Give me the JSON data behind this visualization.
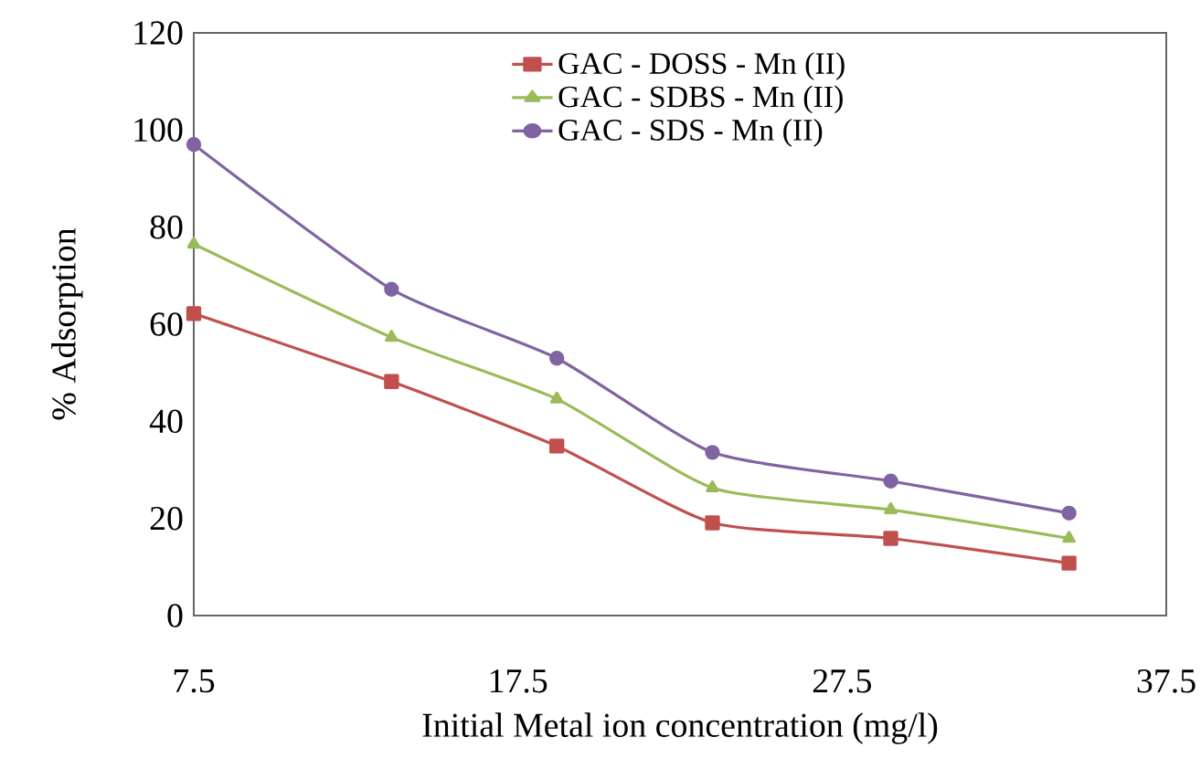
{
  "chart_data": {
    "type": "line",
    "xlabel": "Initial Metal ion concentration (mg/l)",
    "ylabel": "% Adsorption",
    "xlim": [
      7.5,
      37.5
    ],
    "xticks": [
      7.5,
      17.5,
      27.5,
      37.5
    ],
    "ylim": [
      0,
      120
    ],
    "yticks": [
      0,
      20,
      40,
      60,
      80,
      100,
      120
    ],
    "x": [
      7.5,
      13.6,
      18.7,
      23.5,
      29.0,
      34.5
    ],
    "series": [
      {
        "name": "GAC - DOSS - Mn (II)",
        "color": "#c0504d",
        "marker": "square",
        "values": [
          62.2,
          48.2,
          34.9,
          19.1,
          15.9,
          10.8
        ]
      },
      {
        "name": "GAC - SDBS - Mn (II)",
        "color": "#9bbb59",
        "marker": "triangle",
        "values": [
          76.5,
          57.3,
          44.6,
          26.3,
          21.8,
          15.9
        ]
      },
      {
        "name": "GAC - SDS - Mn (II)",
        "color": "#8064a2",
        "marker": "circle",
        "values": [
          97.0,
          67.2,
          53.0,
          33.6,
          27.7,
          21.1
        ]
      }
    ],
    "legend": "top",
    "grid": false
  }
}
